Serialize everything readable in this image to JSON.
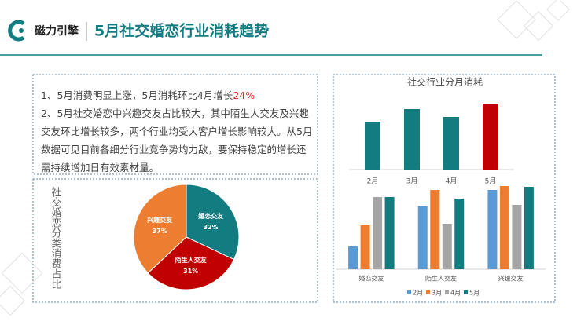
{
  "header": {
    "logo_text": "磁力引擎",
    "title": "5月社交婚恋行业消耗趋势"
  },
  "notes": [
    {
      "text": "1、5月消费明显上涨，5月消耗环比4月增长",
      "highlight": "24%"
    },
    {
      "text": "2、5月社交婚恋中兴趣交友占比较大，其中陌生人交友及兴趣交友环比增长较多，两个行业均受大客户增长影响较大。从5月数据可见目前各细分行业竞争势均力敌，要保持稳定的增长还需持续增加日有效素材量。"
    }
  ],
  "chart_data": [
    {
      "type": "pie",
      "title": "社交婚恋分类消费占比",
      "categories": [
        "婚恋交友",
        "陌生人交友",
        "兴趣交友"
      ],
      "values": [
        32,
        31,
        37
      ],
      "value_labels": [
        "32%",
        "31%",
        "37%"
      ],
      "colors": [
        "#127c80",
        "#c00000",
        "#ed7d31"
      ]
    },
    {
      "type": "bar",
      "title": "社交行业分月消耗",
      "categories": [
        "2月",
        "3月",
        "4月",
        "5月"
      ],
      "values": [
        61,
        77,
        67,
        84
      ],
      "colors": [
        "#127c80",
        "#127c80",
        "#127c80",
        "#c00000"
      ],
      "ylim": [
        0,
        90
      ]
    },
    {
      "type": "grouped-bar",
      "categories": [
        "婚恋交友",
        "陌生人交友",
        "兴趣交友"
      ],
      "series": [
        {
          "name": "2月",
          "color": "#5b9bd5",
          "values": [
            29,
            81,
            101
          ]
        },
        {
          "name": "3月",
          "color": "#ed7d31",
          "values": [
            56,
            101,
            106
          ]
        },
        {
          "name": "4月",
          "color": "#a5a5a5",
          "values": [
            92,
            58,
            82
          ]
        },
        {
          "name": "5月",
          "color": "#127c80",
          "values": [
            92,
            90,
            105
          ]
        }
      ],
      "ylim": [
        0,
        110
      ],
      "legend": "bottom"
    }
  ]
}
